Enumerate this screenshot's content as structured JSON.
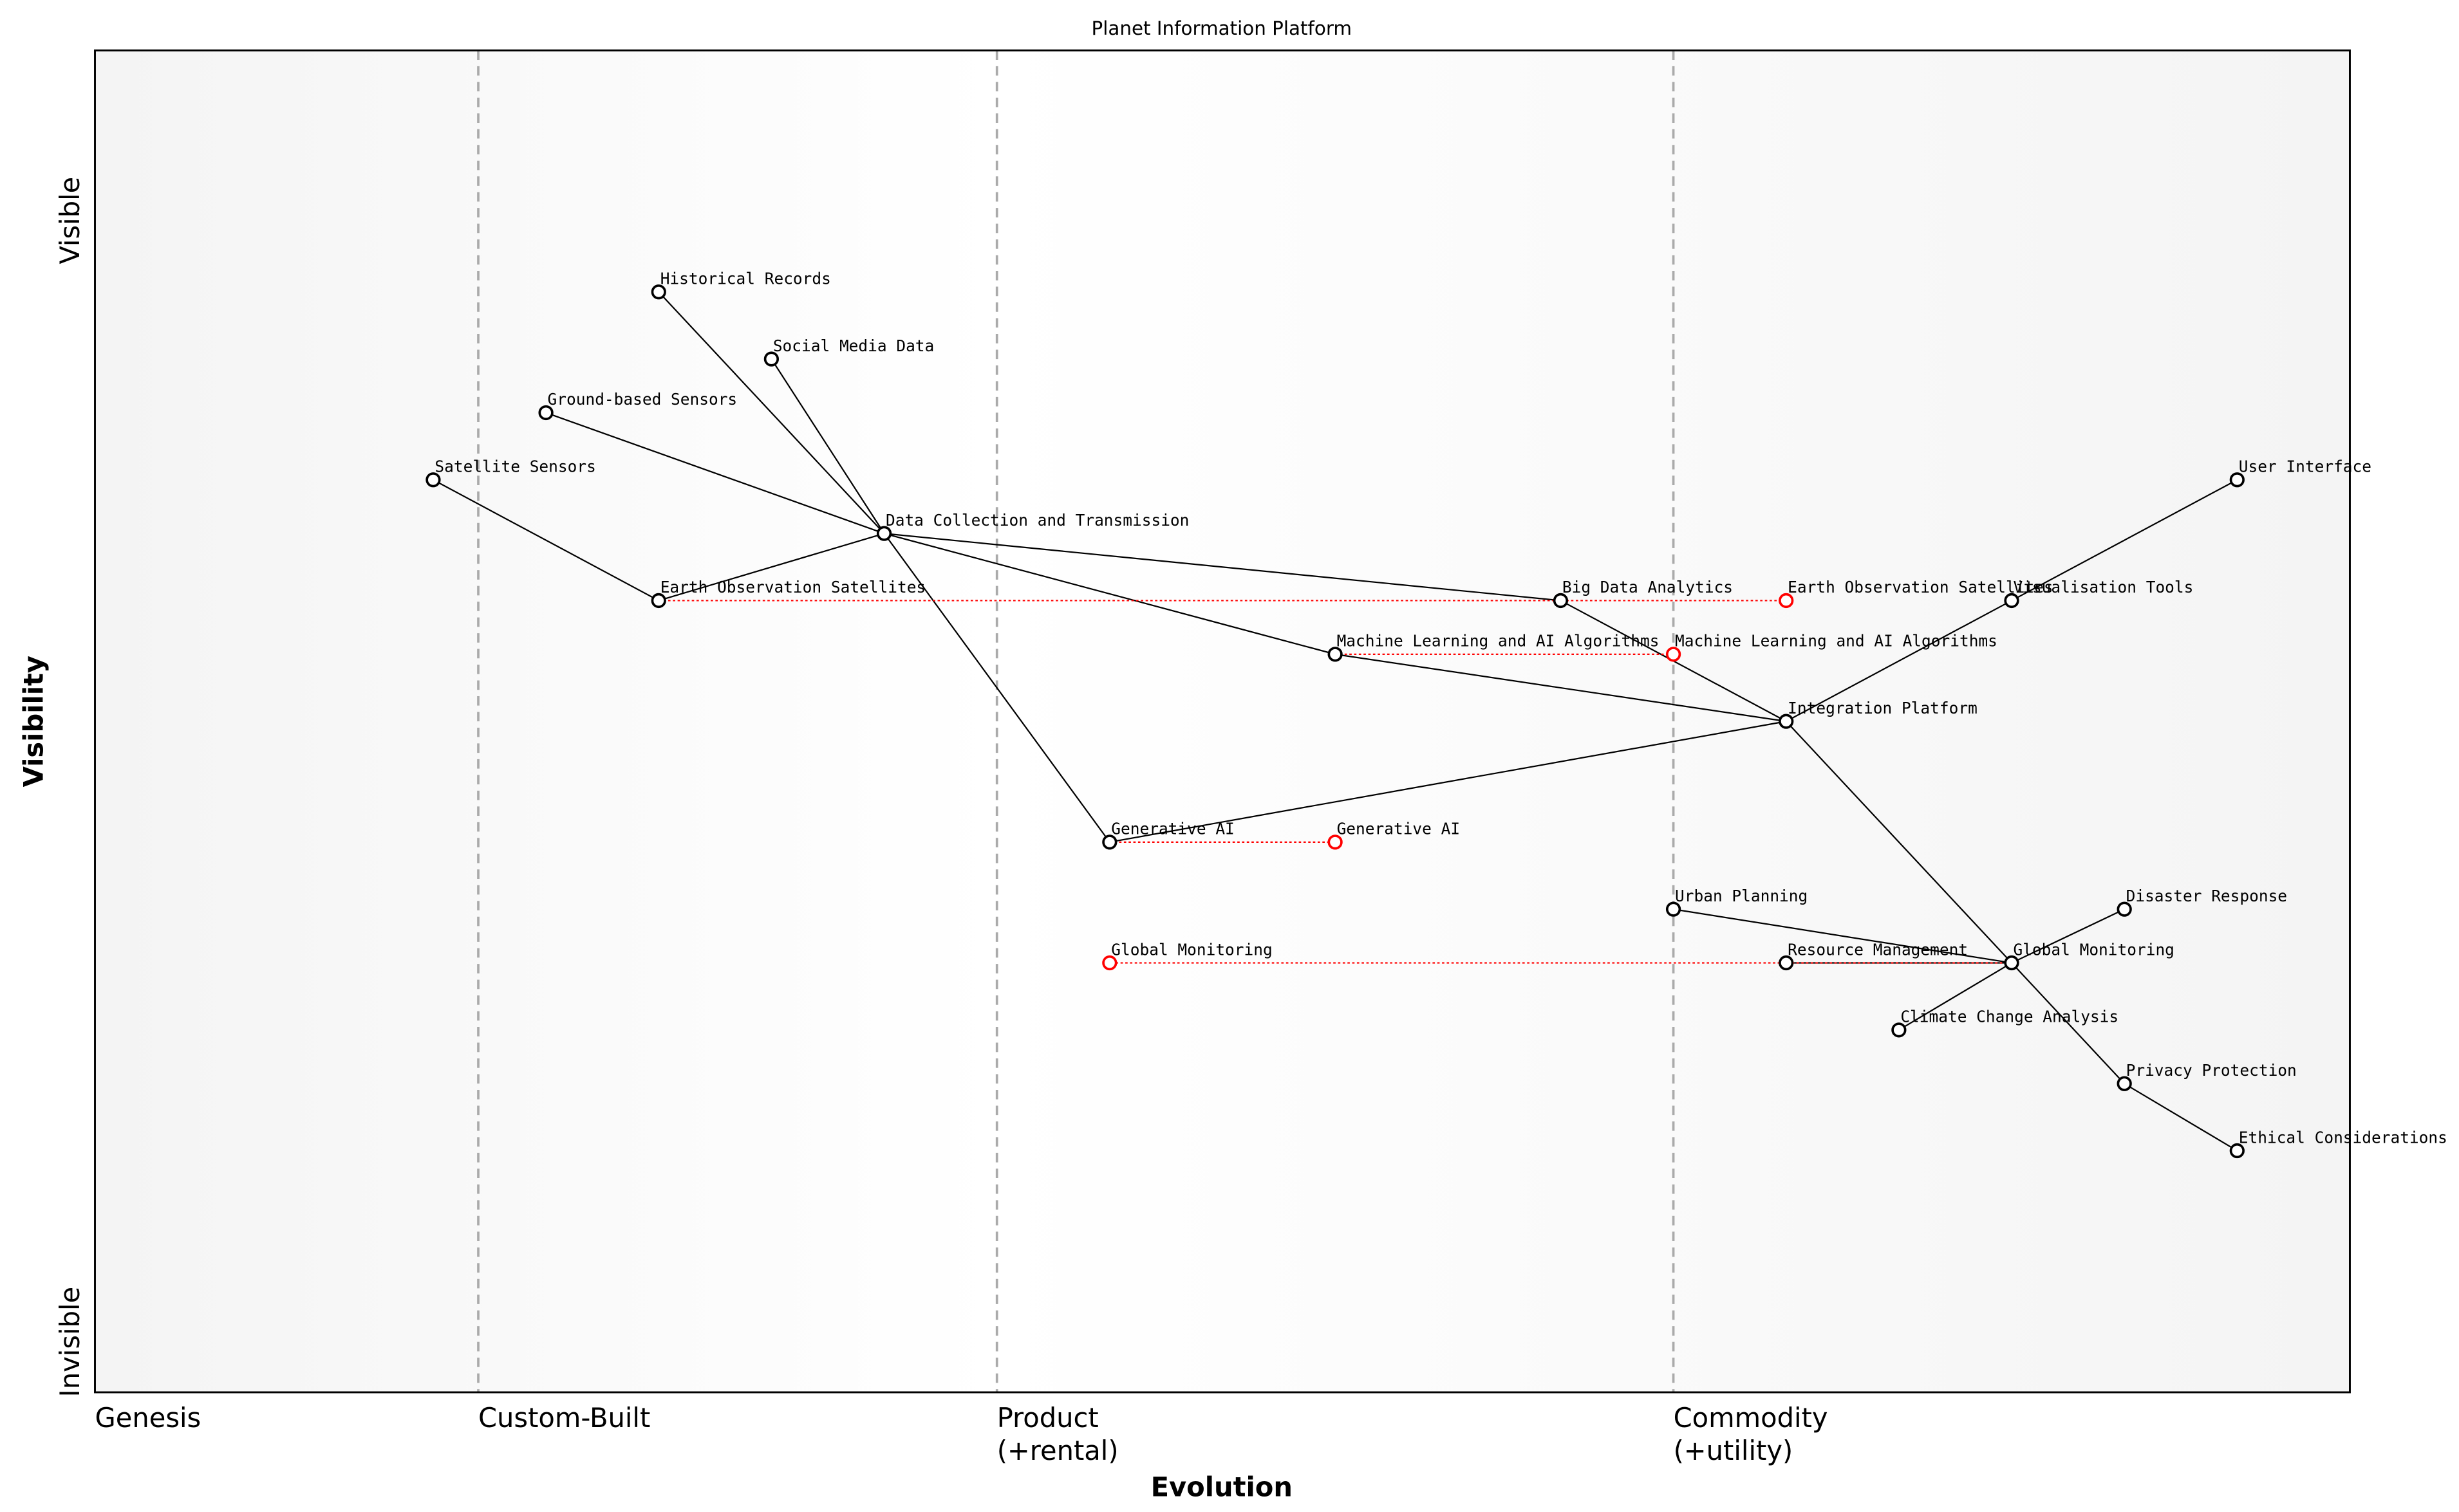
{
  "title": "Planet Information Platform",
  "axes": {
    "x_label": "Evolution",
    "y_label": "Visibility",
    "y_top": "Visible",
    "y_bottom": "Invisible",
    "stages": [
      {
        "label": [
          "Genesis"
        ],
        "evolution": 0.0
      },
      {
        "label": [
          "Custom-Built"
        ],
        "evolution": 0.17
      },
      {
        "label": [
          "Product",
          "(+rental)"
        ],
        "evolution": 0.4
      },
      {
        "label": [
          "Commodity",
          "(+utility)"
        ],
        "evolution": 0.7
      }
    ]
  },
  "colors": {
    "node": "#000000",
    "evolve": "#ff0000",
    "stage_line": "#aaaaaa"
  },
  "components": [
    {
      "name": "Historical Records",
      "visibility": 0.82,
      "evolution": 0.25
    },
    {
      "name": "Social Media Data",
      "visibility": 0.77,
      "evolution": 0.3
    },
    {
      "name": "Ground-based Sensors",
      "visibility": 0.73,
      "evolution": 0.2
    },
    {
      "name": "Satellite Sensors",
      "visibility": 0.68,
      "evolution": 0.15
    },
    {
      "name": "Data Collection and Transmission",
      "visibility": 0.64,
      "evolution": 0.35
    },
    {
      "name": "Earth Observation Satellites",
      "visibility": 0.59,
      "evolution": 0.25
    },
    {
      "name": "Big Data Analytics",
      "visibility": 0.59,
      "evolution": 0.65
    },
    {
      "name": "Machine Learning and AI Algorithms",
      "visibility": 0.55,
      "evolution": 0.55
    },
    {
      "name": "Integration Platform",
      "visibility": 0.5,
      "evolution": 0.75
    },
    {
      "name": "Visualisation Tools",
      "visibility": 0.59,
      "evolution": 0.85
    },
    {
      "name": "User Interface",
      "visibility": 0.68,
      "evolution": 0.95
    },
    {
      "name": "Generative AI",
      "visibility": 0.41,
      "evolution": 0.45
    },
    {
      "name": "Urban Planning",
      "visibility": 0.36,
      "evolution": 0.7
    },
    {
      "name": "Resource Management",
      "visibility": 0.32,
      "evolution": 0.75
    },
    {
      "name": "Global Monitoring",
      "visibility": 0.32,
      "evolution": 0.85
    },
    {
      "name": "Disaster Response",
      "visibility": 0.36,
      "evolution": 0.9
    },
    {
      "name": "Climate Change Analysis",
      "visibility": 0.27,
      "evolution": 0.8
    },
    {
      "name": "Privacy Protection",
      "visibility": 0.23,
      "evolution": 0.9
    },
    {
      "name": "Ethical Considerations",
      "visibility": 0.18,
      "evolution": 0.95
    }
  ],
  "evolutions": [
    {
      "name": "Earth Observation Satellites",
      "to": 0.75
    },
    {
      "name": "Machine Learning and AI Algorithms",
      "to": 0.7
    },
    {
      "name": "Generative AI",
      "to": 0.55
    },
    {
      "name": "Global Monitoring",
      "to": 0.45
    }
  ],
  "links": [
    [
      "Historical Records",
      "Data Collection and Transmission"
    ],
    [
      "Social Media Data",
      "Data Collection and Transmission"
    ],
    [
      "Ground-based Sensors",
      "Data Collection and Transmission"
    ],
    [
      "Satellite Sensors",
      "Earth Observation Satellites"
    ],
    [
      "Earth Observation Satellites",
      "Data Collection and Transmission"
    ],
    [
      "Data Collection and Transmission",
      "Big Data Analytics"
    ],
    [
      "Data Collection and Transmission",
      "Machine Learning and AI Algorithms"
    ],
    [
      "Data Collection and Transmission",
      "Generative AI"
    ],
    [
      "Big Data Analytics",
      "Integration Platform"
    ],
    [
      "Machine Learning and AI Algorithms",
      "Integration Platform"
    ],
    [
      "Generative AI",
      "Integration Platform"
    ],
    [
      "Integration Platform",
      "Visualisation Tools"
    ],
    [
      "Visualisation Tools",
      "User Interface"
    ],
    [
      "Integration Platform",
      "Global Monitoring"
    ],
    [
      "Urban Planning",
      "Global Monitoring"
    ],
    [
      "Resource Management",
      "Global Monitoring"
    ],
    [
      "Disaster Response",
      "Global Monitoring"
    ],
    [
      "Climate Change Analysis",
      "Global Monitoring"
    ],
    [
      "Global Monitoring",
      "Privacy Protection"
    ],
    [
      "Privacy Protection",
      "Ethical Considerations"
    ]
  ]
}
